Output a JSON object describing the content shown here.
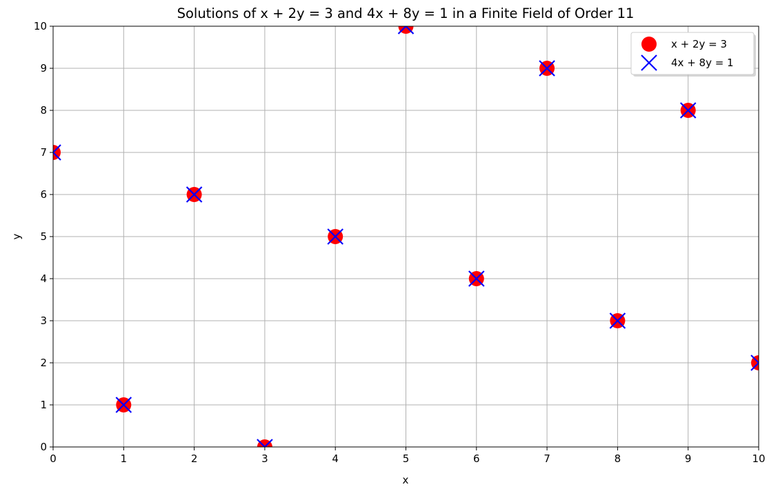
{
  "chart_data": {
    "type": "scatter",
    "title": "Solutions of x + 2y = 3 and 4x + 8y = 1 in a Finite Field of Order 11",
    "xlabel": "x",
    "ylabel": "y",
    "xlim": [
      0,
      10
    ],
    "ylim": [
      0,
      10
    ],
    "xticks": [
      0,
      1,
      2,
      3,
      4,
      5,
      6,
      7,
      8,
      9,
      10
    ],
    "yticks": [
      0,
      1,
      2,
      3,
      4,
      5,
      6,
      7,
      8,
      9,
      10
    ],
    "grid": true,
    "legend_placement": "top-right",
    "series": [
      {
        "name": "x + 2y = 3",
        "marker": "circle",
        "color": "#ff0000",
        "x": [
          0,
          1,
          2,
          3,
          4,
          5,
          6,
          7,
          8,
          9,
          10
        ],
        "y": [
          7,
          1,
          6,
          0,
          5,
          10,
          4,
          9,
          3,
          8,
          2
        ]
      },
      {
        "name": "4x + 8y = 1",
        "marker": "x",
        "color": "#0000ff",
        "x": [
          0,
          1,
          2,
          3,
          4,
          5,
          6,
          7,
          8,
          9,
          10
        ],
        "y": [
          7,
          1,
          6,
          0,
          5,
          10,
          4,
          9,
          3,
          8,
          2
        ]
      }
    ]
  }
}
